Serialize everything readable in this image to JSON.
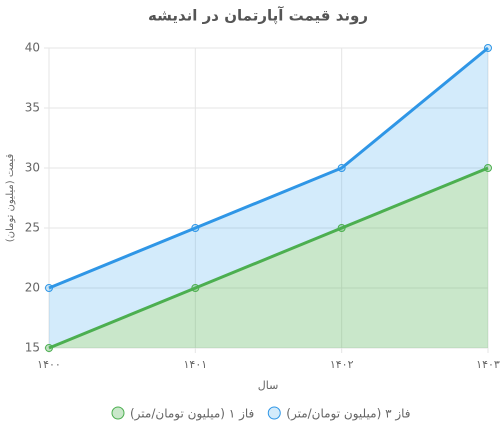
{
  "chart_data": {
    "type": "line",
    "title": "روند قیمت آپارتمان در اندیشه",
    "x_label": "سال",
    "y_label": "قیمت (میلیون تومان)",
    "categories": [
      "۱۴۰۰",
      "۱۴۰۱",
      "۱۴۰۲",
      "۱۴۰۳"
    ],
    "series": [
      {
        "name": "فاز ۱ (میلیون تومان/متر)",
        "color": "#4caf50",
        "fill": "rgba(76,175,80,0.3)",
        "values": [
          15,
          20,
          25,
          30
        ]
      },
      {
        "name": "فاز ۳ (میلیون تومان/متر)",
        "color": "#2f96e6",
        "fill": "rgba(54,162,235,0.22)",
        "values": [
          20,
          25,
          30,
          40
        ]
      }
    ],
    "ylim": [
      15,
      40
    ],
    "yticks": [
      15,
      20,
      25,
      30,
      35,
      40
    ],
    "grid": true
  }
}
